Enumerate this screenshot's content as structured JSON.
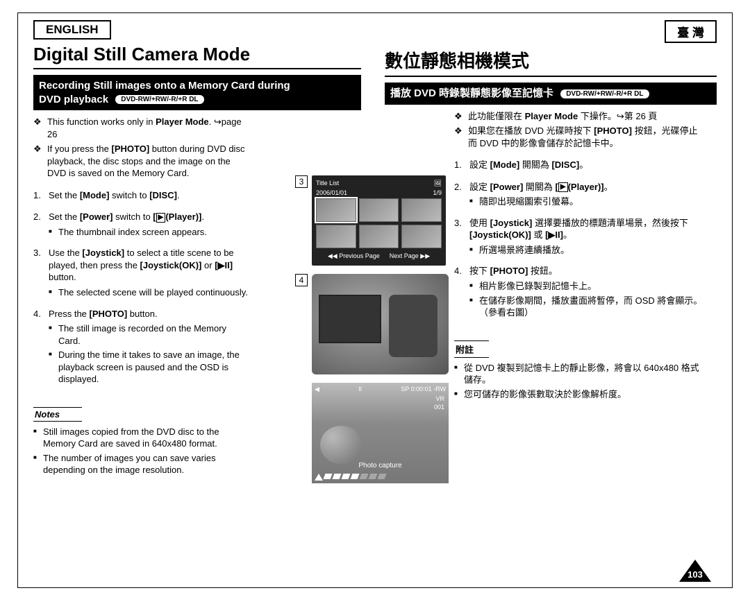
{
  "left": {
    "lang": "ENGLISH",
    "title": "Digital Still Camera Mode",
    "subhead_l1": "Recording Still images onto a Memory Card during",
    "subhead_l2": "DVD playback",
    "badge": "DVD-RW/+RW/-R/+R DL",
    "bullets": [
      "This function works only in <b>Player Mode</b>. ↪page 26",
      "If you press the <b>[PHOTO]</b> button during DVD disc playback, the disc stops and the image on the DVD is saved on the Memory Card."
    ],
    "steps": [
      {
        "n": "1.",
        "t": "Set the <b>[Mode]</b> switch to <b>[DISC]</b>.",
        "subs": []
      },
      {
        "n": "2.",
        "t": "Set the <b>[Power]</b> switch to <b>[<span class='icon-play'>▶</span>(Player)]</b>.",
        "subs": [
          "The thumbnail index screen appears."
        ]
      },
      {
        "n": "3.",
        "t": "Use the <b>[Joystick]</b> to select a title scene to be played, then press the <b>[Joystick(OK)]</b> or <b>[▶II]</b> button.",
        "subs": [
          "The selected scene will be played continuously."
        ]
      },
      {
        "n": "4.",
        "t": "Press the <b>[PHOTO]</b> button.",
        "subs": [
          "The still image is recorded on the Memory Card.",
          "During the time it takes to save an image, the playback screen is paused and the OSD is displayed."
        ]
      }
    ],
    "notes_label": "Notes",
    "notes": [
      "Still images copied from the DVD disc to the Memory Card are saved in 640x480 format.",
      "The number of images you can save varies depending on the image resolution."
    ]
  },
  "right": {
    "lang": "臺 灣",
    "title": "數位靜態相機模式",
    "subhead": "播放 DVD 時錄製靜態影像至記憶卡",
    "badge": "DVD-RW/+RW/-R/+R DL",
    "bullets": [
      "此功能僅限在 <b>Player Mode</b> 下操作。↪第 26 頁",
      "如果您在播放 DVD 光碟時按下 <b>[PHOTO]</b> 按鈕，光碟停止而 DVD 中的影像會儲存於記憶卡中。"
    ],
    "steps": [
      {
        "n": "1.",
        "t": "設定 <b>[Mode]</b> 開關為 <b>[DISC]</b>。",
        "subs": []
      },
      {
        "n": "2.",
        "t": "設定 <b>[Power]</b> 開關為 <b>[<span class='icon-play'>▶</span>(Player)]</b>。",
        "subs": [
          "隨即出現縮圖索引螢幕。"
        ]
      },
      {
        "n": "3.",
        "t": "使用 <b>[Joystick]</b> 選擇要播放的標題清單場景，然後按下 <b>[Joystick(OK)]</b> 或 <b>[▶II]</b>。",
        "subs": [
          "所選場景將連續播放。"
        ]
      },
      {
        "n": "4.",
        "t": "按下 <b>[PHOTO]</b> 按鈕。",
        "subs": [
          "相片影像已錄製到記憶卡上。",
          "在儲存影像期間，播放畫面將暫停，而 OSD 將會顯示。（參看右圖）"
        ]
      }
    ],
    "notes_label": "附註",
    "notes": [
      "從 DVD 複製到記憶卡上的靜止影像，將會以 640x480 格式儲存。",
      "您可儲存的影像張數取決於影像解析度。"
    ]
  },
  "figures": {
    "fig3": {
      "num": "3",
      "hdr_left": "Title List",
      "hdr_right_icon": "🖼",
      "date": "2006/01/01",
      "counter": "1/9",
      "prev": "◀◀ Previous Page",
      "next": "Next Page ▶▶"
    },
    "fig4": {
      "num": "4"
    },
    "playback": {
      "osd_top_left": "◀",
      "osd_top_mid": "II",
      "osd_top_right1": "SP",
      "osd_top_right2": "0:00:01",
      "osd_top_right3": "-RW",
      "osd_mid1": "VR",
      "osd_mid2": "001",
      "caption": "Photo capture"
    }
  },
  "page_number": "103",
  "colors": {
    "black": "#000000",
    "white": "#ffffff",
    "lcd_bg": "#222222",
    "camera_bg": "#888888"
  }
}
